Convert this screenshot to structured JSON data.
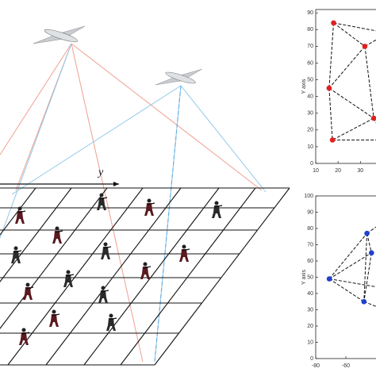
{
  "illustration": {
    "axis_label": "y"
  },
  "chart_data": [
    {
      "type": "scatter",
      "y_label": "Y axis",
      "color": "#e02020",
      "xlim": [
        10,
        37
      ],
      "ylim": [
        0,
        92
      ],
      "xticks": [
        10,
        20,
        30
      ],
      "yticks": [
        0,
        10,
        20,
        30,
        40,
        50,
        60,
        70,
        80,
        90
      ],
      "x": [
        18,
        32,
        16,
        36,
        17.5
      ],
      "y": [
        84,
        70,
        45,
        27,
        14
      ]
    },
    {
      "type": "scatter",
      "y_label": "Y axis",
      "color": "#2040d0",
      "xlim": [
        -80,
        -40
      ],
      "ylim": [
        0,
        100
      ],
      "xticks": [
        -80,
        -60
      ],
      "yticks": [
        0,
        10,
        20,
        30,
        40,
        50,
        60,
        70,
        80,
        90,
        100
      ],
      "x": [
        -71,
        -46,
        -43,
        -48
      ],
      "y": [
        49,
        77,
        65,
        35
      ]
    }
  ]
}
